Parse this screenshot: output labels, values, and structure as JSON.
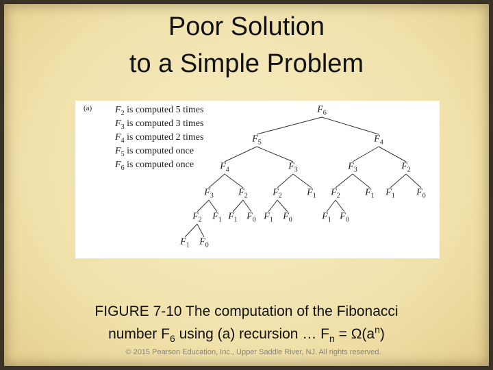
{
  "title": [
    "Poor Solution",
    "to a Simple Problem"
  ],
  "figure": {
    "panel_label": "(a)",
    "legend": [
      {
        "name": "F",
        "index": "2",
        "text": "is computed 5 times"
      },
      {
        "name": "F",
        "index": "3",
        "text": "is computed 3 times"
      },
      {
        "name": "F",
        "index": "4",
        "text": "is computed 2 times"
      },
      {
        "name": "F",
        "index": "5",
        "text": "is computed once"
      },
      {
        "name": "F",
        "index": "6",
        "text": "is computed once"
      }
    ],
    "nodes": [
      {
        "name": "F",
        "index": "6"
      },
      {
        "name": "F",
        "index": "5"
      },
      {
        "name": "F",
        "index": "4"
      },
      {
        "name": "F",
        "index": "4"
      },
      {
        "name": "F",
        "index": "3"
      },
      {
        "name": "F",
        "index": "3"
      },
      {
        "name": "F",
        "index": "2"
      },
      {
        "name": "F",
        "index": "3"
      },
      {
        "name": "F",
        "index": "2"
      },
      {
        "name": "F",
        "index": "2"
      },
      {
        "name": "F",
        "index": "1"
      },
      {
        "name": "F",
        "index": "2"
      },
      {
        "name": "F",
        "index": "1"
      },
      {
        "name": "F",
        "index": "1"
      },
      {
        "name": "F",
        "index": "0"
      },
      {
        "name": "F",
        "index": "2"
      },
      {
        "name": "F",
        "index": "1"
      },
      {
        "name": "F",
        "index": "1"
      },
      {
        "name": "F",
        "index": "0"
      },
      {
        "name": "F",
        "index": "1"
      },
      {
        "name": "F",
        "index": "0"
      },
      {
        "name": "F",
        "index": "1"
      },
      {
        "name": "F",
        "index": "0"
      },
      {
        "name": "F",
        "index": "1"
      },
      {
        "name": "F",
        "index": "0"
      }
    ]
  },
  "caption": {
    "line1": "FIGURE 7-10 The computation of the Fibonacci",
    "line2": [
      {
        "t": "number F"
      },
      {
        "sub": "6"
      },
      {
        "t": " using (a) recursion … F"
      },
      {
        "sub": "n"
      },
      {
        "t": "  = Ω(a"
      },
      {
        "sup": "n"
      },
      {
        "t": ")"
      }
    ]
  },
  "footer": "© 2015 Pearson Education, Inc., Upper Saddle River, NJ.  All rights reserved."
}
